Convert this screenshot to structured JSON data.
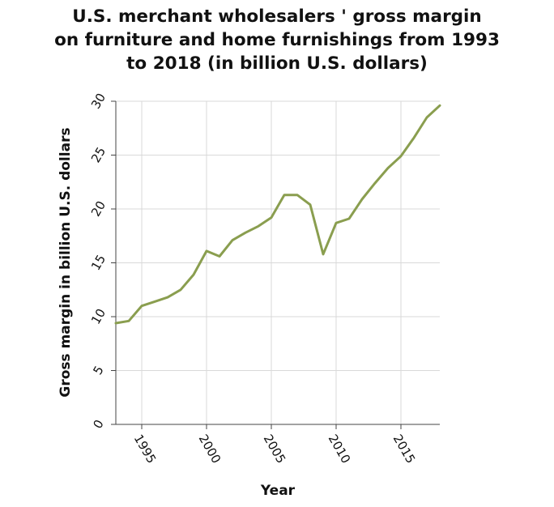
{
  "chart_data": {
    "type": "line",
    "title_lines": [
      "U.S. merchant wholesalers ' gross margin",
      "on furniture and home furnishings from 1993",
      "to 2018 (in billion U.S. dollars)"
    ],
    "xlabel": "Year",
    "ylabel": "Gross margin in billion U.S. dollars",
    "xlim": [
      1993,
      2018
    ],
    "ylim": [
      0,
      30
    ],
    "x_ticks": [
      1995,
      2000,
      2005,
      2010,
      2015
    ],
    "y_ticks": [
      0,
      5,
      10,
      15,
      20,
      25,
      30
    ],
    "grid": true,
    "line_color": "#8a9e4f",
    "series": [
      {
        "x": [
          1993,
          1994,
          1995,
          1996,
          1997,
          1998,
          1999,
          2000,
          2001,
          2002,
          2003,
          2004,
          2005,
          2006,
          2007,
          2008,
          2009,
          2010,
          2011,
          2012,
          2013,
          2014,
          2015,
          2016,
          2017,
          2018
        ],
        "values": [
          9.4,
          9.6,
          11.0,
          11.4,
          11.8,
          12.5,
          13.9,
          16.1,
          15.6,
          17.1,
          17.8,
          18.4,
          19.2,
          21.3,
          21.3,
          20.4,
          15.8,
          18.7,
          19.1,
          20.9,
          22.4,
          23.8,
          24.9,
          26.6,
          28.5,
          29.6
        ]
      }
    ]
  }
}
